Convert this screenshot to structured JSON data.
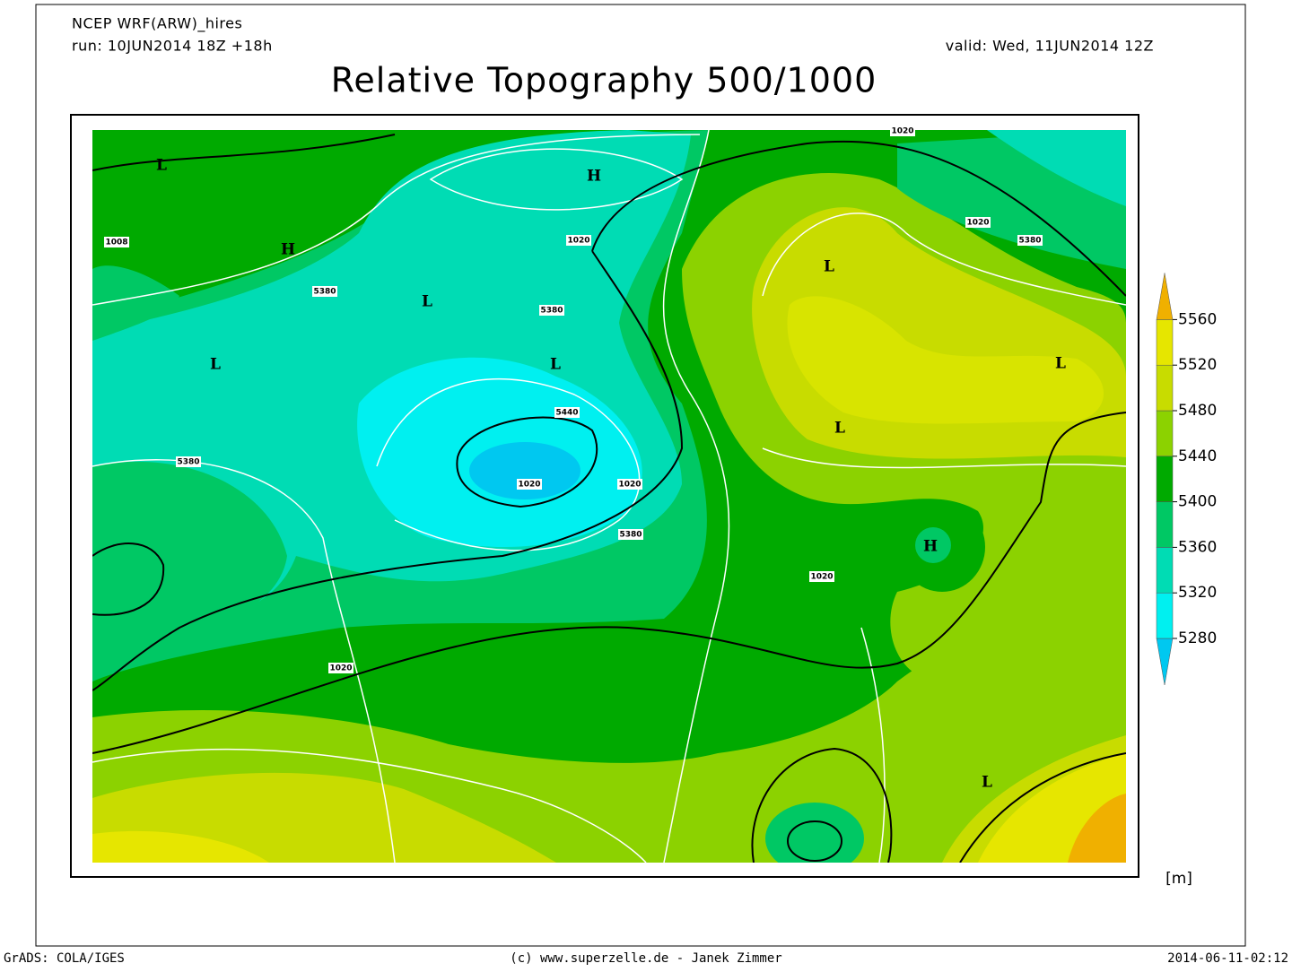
{
  "header": {
    "model": "NCEP WRF(ARW)_hires",
    "run": "run: 10JUN2014 18Z +18h",
    "valid": "valid: Wed, 11JUN2014 12Z",
    "title": "Relative Topography 500/1000"
  },
  "map": {
    "pressure_centers": [
      "L",
      "H",
      "H",
      "L",
      "L",
      "L",
      "L",
      "L",
      "L",
      "H",
      "L"
    ],
    "contour_labels": [
      1008,
      1020,
      1020,
      1020,
      5380,
      5380,
      5380,
      5440,
      1020,
      1020,
      5380,
      1020,
      1020,
      5380
    ]
  },
  "colorbar": {
    "ticks": [
      5280,
      5320,
      5360,
      5400,
      5440,
      5480,
      5520,
      5560
    ],
    "colors": [
      "#00c8f0",
      "#00f0f0",
      "#00dcb4",
      "#00c864",
      "#00aa00",
      "#8cd200",
      "#c8dc00",
      "#e6e600",
      "#f0b000"
    ],
    "unit": "[m]"
  },
  "footer": {
    "left": "GrADS: COLA/IGES",
    "center": "(c) www.superzelle.de - Janek Zimmer",
    "right": "2014-06-11-02:12"
  }
}
